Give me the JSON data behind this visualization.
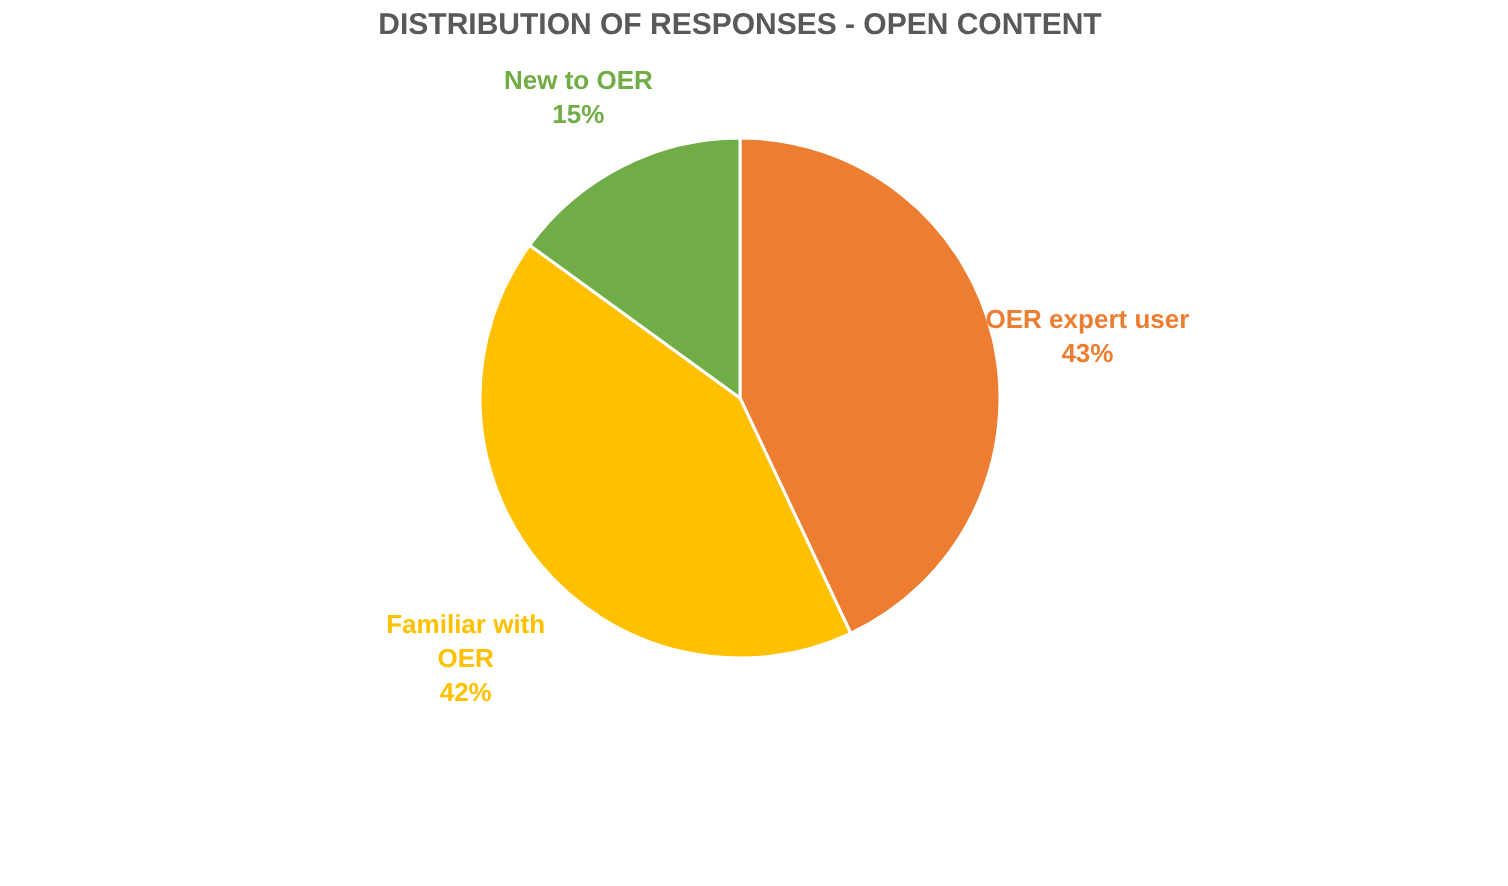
{
  "chart_data": {
    "type": "pie",
    "title": "DISTRIBUTION OF RESPONSES - OPEN CONTENT",
    "categories": [
      "OER expert user",
      "Familiar with OER",
      "New to OER"
    ],
    "values": [
      43,
      42,
      15
    ],
    "colors": [
      "#ed7d31",
      "#ffc000",
      "#70ad47"
    ],
    "value_labels": [
      "43%",
      "42%",
      "15%"
    ],
    "legend": false
  }
}
